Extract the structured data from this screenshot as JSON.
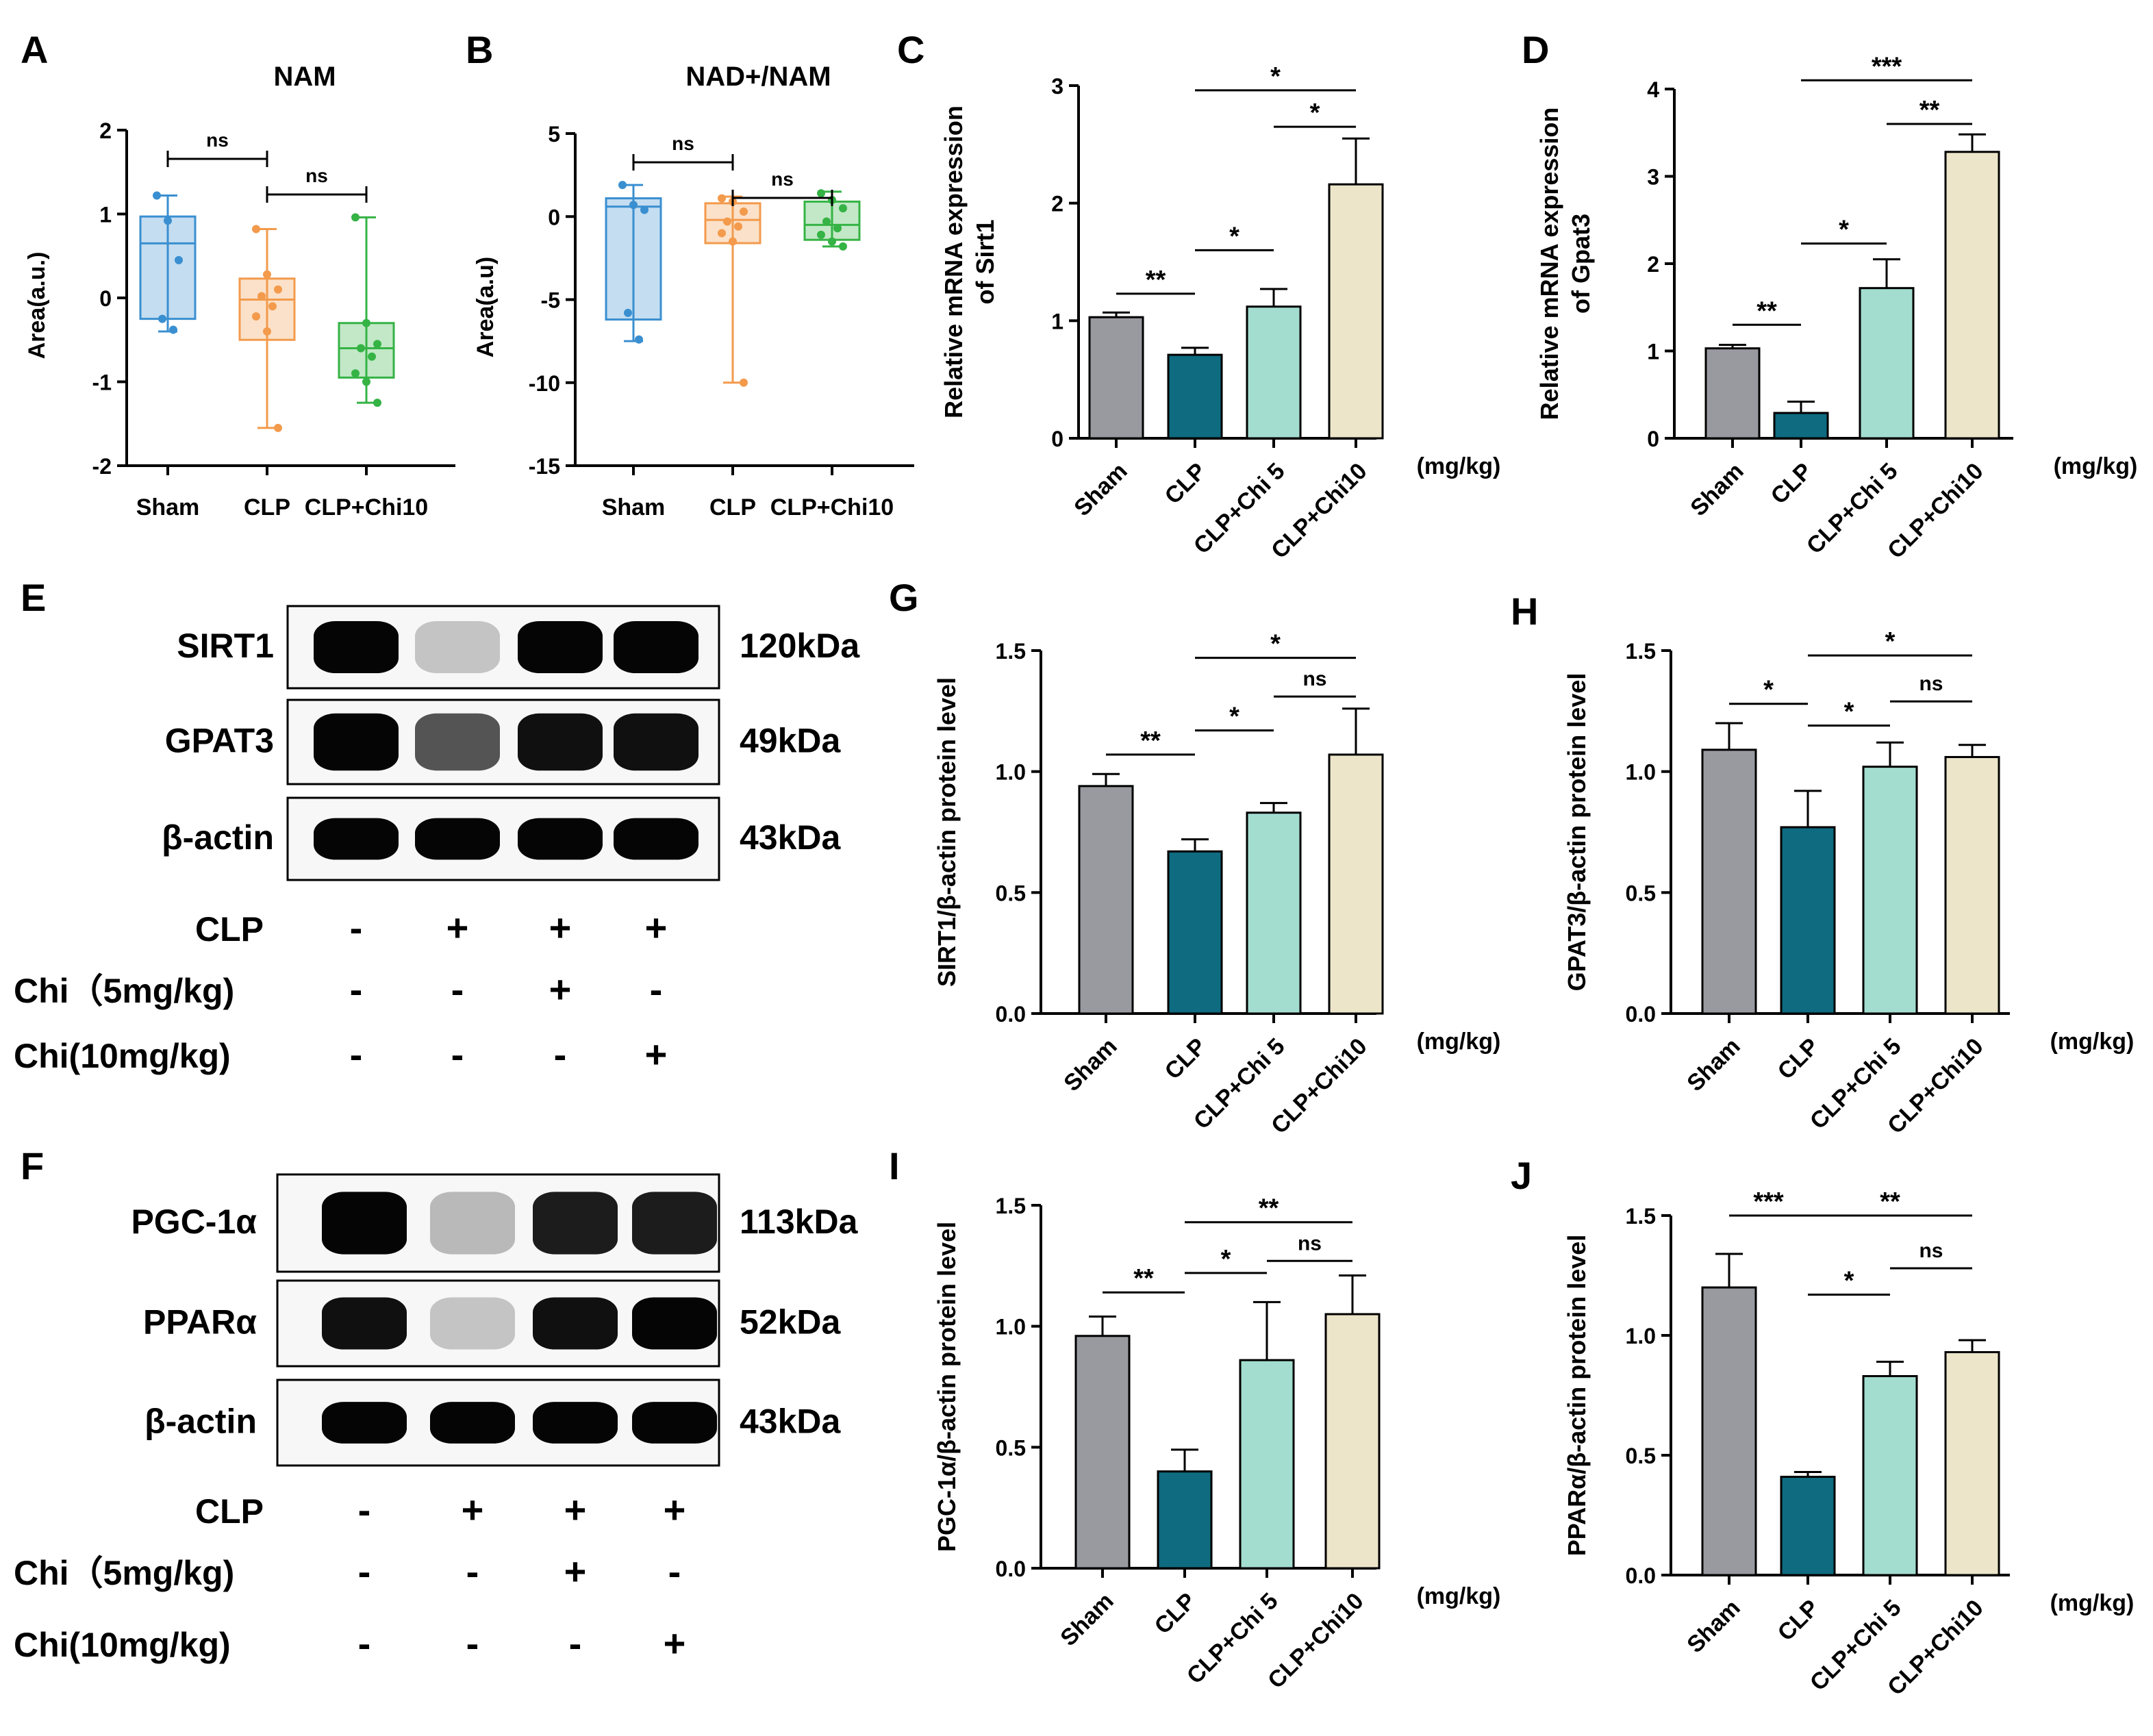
{
  "figure": {
    "colors": {
      "sham": "#999aa0",
      "clp": "#0e6b80",
      "chi5": "#a3ddd0",
      "chi10": "#ece5c9",
      "box_sham": "#3a8fd0",
      "box_clp": "#f39a4c",
      "box_chi": "#35b345"
    },
    "panel_letters": [
      "A",
      "B",
      "C",
      "D",
      "E",
      "G",
      "H",
      "F",
      "I",
      "J"
    ]
  },
  "chart_data": [
    {
      "panel": "A",
      "type": "box",
      "title": "NAM",
      "ylabel": "Area(a.u.)",
      "ylim": [
        -2,
        2
      ],
      "yticks": [
        "2",
        "1",
        "0",
        "-1",
        "-2"
      ],
      "categories": [
        "Sham",
        "CLP",
        "CLP+Chi10"
      ],
      "boxes": [
        {
          "min": -0.4,
          "q1": -0.25,
          "median": 0.65,
          "q3": 0.97,
          "max": 1.22,
          "points": [
            1.22,
            0.92,
            0.45,
            -0.25,
            -0.38
          ]
        },
        {
          "min": -1.55,
          "q1": -0.5,
          "median": -0.02,
          "q3": 0.23,
          "max": 0.82,
          "points": [
            0.82,
            0.28,
            0.1,
            0.02,
            -0.1,
            -0.22,
            -0.4,
            -1.55
          ]
        },
        {
          "min": -1.25,
          "q1": -0.95,
          "median": -0.6,
          "q3": -0.3,
          "max": 0.96,
          "points": [
            0.96,
            -0.3,
            -0.55,
            -0.6,
            -0.7,
            -0.9,
            -1.0,
            -1.25
          ]
        }
      ],
      "comparisons": [
        {
          "from": 0,
          "to": 1,
          "label": "ns"
        },
        {
          "from": 1,
          "to": 2,
          "label": "ns"
        }
      ]
    },
    {
      "panel": "B",
      "type": "box",
      "title": "NAD+/NAM",
      "ylabel": "Area(a.u)",
      "ylim": [
        -15,
        5
      ],
      "yticks": [
        "5",
        "0",
        "-5",
        "-10",
        "-15"
      ],
      "categories": [
        "Sham",
        "CLP",
        "CLP+Chi10"
      ],
      "boxes": [
        {
          "min": -7.5,
          "q1": -6.2,
          "median": 0.6,
          "q3": 1.1,
          "max": 1.9,
          "points": [
            1.9,
            0.7,
            0.4,
            -5.8,
            -7.4
          ]
        },
        {
          "min": -10.0,
          "q1": -1.6,
          "median": -0.2,
          "q3": 0.8,
          "max": 1.2,
          "points": [
            1.1,
            0.9,
            0.3,
            -0.3,
            -0.6,
            -1.0,
            -1.5,
            -10.0
          ]
        },
        {
          "min": -1.8,
          "q1": -1.4,
          "median": -0.5,
          "q3": 0.9,
          "max": 1.5,
          "points": [
            1.4,
            1.0,
            0.5,
            -0.3,
            -0.7,
            -1.1,
            -1.5,
            -1.8
          ]
        }
      ],
      "comparisons": [
        {
          "from": 0,
          "to": 1,
          "label": "ns"
        },
        {
          "from": 1,
          "to": 2,
          "label": "ns"
        }
      ]
    },
    {
      "panel": "C",
      "type": "bar",
      "ylabel": [
        "Relative mRNA expression",
        "of Sirt1"
      ],
      "ylim": [
        0,
        3
      ],
      "yticks": [
        "3",
        "2",
        "1",
        "0"
      ],
      "unit": "(mg/kg)",
      "categories": [
        "Sham",
        "CLP",
        "CLP+Chi 5",
        "CLP+Chi10"
      ],
      "values": [
        1.03,
        0.71,
        1.12,
        2.16
      ],
      "errors": [
        0.04,
        0.06,
        0.15,
        0.39
      ],
      "comparisons": [
        {
          "from": 0,
          "to": 1,
          "label": "**",
          "level": 1.23
        },
        {
          "from": 1,
          "to": 2,
          "label": "*",
          "level": 1.6
        },
        {
          "from": 2,
          "to": 3,
          "label": "*",
          "level": 2.65
        },
        {
          "from": 1,
          "to": 3,
          "label": "*",
          "level": 2.96
        }
      ]
    },
    {
      "panel": "D",
      "type": "bar",
      "ylabel": [
        "Relative mRNA expression",
        "of Gpat3"
      ],
      "ylim": [
        0,
        4
      ],
      "yticks": [
        "4",
        "3",
        "2",
        "1",
        "0"
      ],
      "unit": "(mg/kg)",
      "categories": [
        "Sham",
        "CLP",
        "CLP+Chi 5",
        "CLP+Chi10"
      ],
      "values": [
        1.03,
        0.29,
        1.72,
        3.28
      ],
      "errors": [
        0.04,
        0.13,
        0.33,
        0.2
      ],
      "comparisons": [
        {
          "from": 0,
          "to": 1,
          "label": "**",
          "level": 1.3
        },
        {
          "from": 1,
          "to": 2,
          "label": "*",
          "level": 2.23
        },
        {
          "from": 2,
          "to": 3,
          "label": "**",
          "level": 3.6
        },
        {
          "from": 1,
          "to": 3,
          "label": "***",
          "level": 4.1
        }
      ]
    },
    {
      "panel": "G",
      "type": "bar",
      "ylabel": [
        "SIRT1/β-actin protein level"
      ],
      "ylim": [
        0,
        1.5
      ],
      "yticks": [
        "1.5",
        "1.0",
        "0.5",
        "0.0"
      ],
      "unit": "(mg/kg)",
      "categories": [
        "Sham",
        "CLP",
        "CLP+Chi 5",
        "CLP+Chi10"
      ],
      "values": [
        0.94,
        0.67,
        0.83,
        1.07
      ],
      "errors": [
        0.05,
        0.05,
        0.04,
        0.19
      ],
      "comparisons": [
        {
          "from": 0,
          "to": 1,
          "label": "**",
          "level": 1.07
        },
        {
          "from": 1,
          "to": 2,
          "label": "*",
          "level": 1.17
        },
        {
          "from": 2,
          "to": 3,
          "label": "ns",
          "level": 1.31
        },
        {
          "from": 1,
          "to": 3,
          "label": "*",
          "level": 1.47
        }
      ]
    },
    {
      "panel": "H",
      "type": "bar",
      "ylabel": [
        "GPAT3/β-actin protein level"
      ],
      "ylim": [
        0,
        1.5
      ],
      "yticks": [
        "1.5",
        "1.0",
        "0.5",
        "0.0"
      ],
      "unit": "(mg/kg)",
      "categories": [
        "Sham",
        "CLP",
        "CLP+Chi 5",
        "CLP+Chi10"
      ],
      "values": [
        1.09,
        0.77,
        1.02,
        1.06
      ],
      "errors": [
        0.11,
        0.15,
        0.1,
        0.05
      ],
      "comparisons": [
        {
          "from": 0,
          "to": 1,
          "label": "*",
          "level": 1.28
        },
        {
          "from": 1,
          "to": 2,
          "label": "*",
          "level": 1.19
        },
        {
          "from": 2,
          "to": 3,
          "label": "ns",
          "level": 1.29
        },
        {
          "from": 1,
          "to": 3,
          "label": "*",
          "level": 1.48
        }
      ]
    },
    {
      "panel": "I",
      "type": "bar",
      "ylabel": [
        "PGC-1α/β-actin protein level"
      ],
      "ylim": [
        0,
        1.5
      ],
      "yticks": [
        "1.5",
        "1.0",
        "0.5",
        "0.0"
      ],
      "unit": "(mg/kg)",
      "categories": [
        "Sham",
        "CLP",
        "CLP+Chi 5",
        "CLP+Chi10"
      ],
      "values": [
        0.96,
        0.4,
        0.86,
        1.05
      ],
      "errors": [
        0.08,
        0.09,
        0.24,
        0.16
      ],
      "comparisons": [
        {
          "from": 0,
          "to": 1,
          "label": "**",
          "level": 1.14
        },
        {
          "from": 1,
          "to": 2,
          "label": "*",
          "level": 1.22
        },
        {
          "from": 2,
          "to": 3,
          "label": "ns",
          "level": 1.27
        },
        {
          "from": 1,
          "to": 3,
          "label": "**",
          "level": 1.43
        }
      ]
    },
    {
      "panel": "J",
      "type": "bar",
      "ylabel": [
        "PPARα/β-actin protein level"
      ],
      "ylim": [
        0,
        1.5
      ],
      "yticks": [
        "1.5",
        "1.0",
        "0.5",
        "0.0"
      ],
      "unit": "(mg/kg)",
      "categories": [
        "Sham",
        "CLP",
        "CLP+Chi 5",
        "CLP+Chi10"
      ],
      "values": [
        1.2,
        0.41,
        0.83,
        0.93
      ],
      "errors": [
        0.14,
        0.02,
        0.06,
        0.05
      ],
      "comparisons": [
        {
          "from": 0,
          "to": 1,
          "label": "***",
          "level": 1.5
        },
        {
          "from": 1,
          "to": 2,
          "label": "*",
          "level": 1.17
        },
        {
          "from": 2,
          "to": 3,
          "label": "ns",
          "level": 1.28
        },
        {
          "from": 1,
          "to": 3,
          "label": "**",
          "level": 1.5
        }
      ]
    }
  ],
  "blots": [
    {
      "panel": "E",
      "rows": [
        {
          "protein": "SIRT1",
          "mw": "120kDa",
          "intensities": [
            1.0,
            0.15,
            1.0,
            1.0
          ],
          "thickness": 1.0
        },
        {
          "protein": "GPAT3",
          "mw": "49kDa",
          "intensities": [
            1.0,
            0.65,
            0.95,
            0.95
          ],
          "thickness": 1.1
        },
        {
          "protein": "β-actin",
          "mw": "43kDa",
          "intensities": [
            1.0,
            1.0,
            1.0,
            1.0
          ],
          "thickness": 0.8
        }
      ],
      "treatments": [
        {
          "label": "CLP",
          "signs": [
            "-",
            "+",
            "+",
            "+"
          ]
        },
        {
          "label": "Chi（5mg/kg)",
          "signs": [
            "-",
            "-",
            "+",
            "-"
          ]
        },
        {
          "label": "Chi(10mg/kg)",
          "signs": [
            "-",
            "-",
            "-",
            "+"
          ]
        }
      ]
    },
    {
      "panel": "F",
      "rows": [
        {
          "protein": "PGC-1α",
          "mw": "113kDa",
          "intensities": [
            1.0,
            0.2,
            0.9,
            0.9
          ],
          "thickness": 1.2
        },
        {
          "protein": "PPARα",
          "mw": "52kDa",
          "intensities": [
            0.95,
            0.15,
            0.95,
            1.0
          ],
          "thickness": 1.0
        },
        {
          "protein": "β-actin",
          "mw": "43kDa",
          "intensities": [
            1.0,
            1.0,
            1.0,
            1.0
          ],
          "thickness": 0.8
        }
      ],
      "treatments": [
        {
          "label": "CLP",
          "signs": [
            "-",
            "+",
            "+",
            "+"
          ]
        },
        {
          "label": "Chi（5mg/kg)",
          "signs": [
            "-",
            "-",
            "+",
            "-"
          ]
        },
        {
          "label": "Chi(10mg/kg)",
          "signs": [
            "-",
            "-",
            "-",
            "+"
          ]
        }
      ]
    }
  ]
}
